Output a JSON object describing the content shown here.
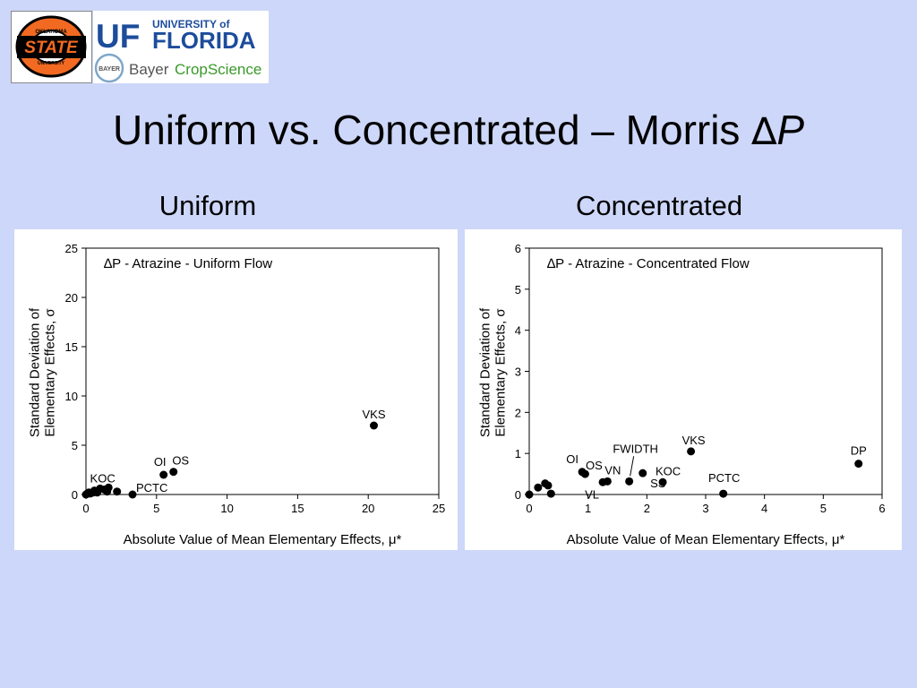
{
  "logos": {
    "osu": {
      "line1": "OKLAHOMA",
      "main": "STATE",
      "line2": "UNIVERSITY"
    },
    "uf": {
      "uf": "UF",
      "university_of": "UNIVERSITY of",
      "florida": "FLORIDA"
    },
    "bayer": {
      "cross": "BAYER",
      "word1": "Bayer",
      "word2": "CropScience"
    }
  },
  "slide": {
    "title_prefix": "Uniform vs. Concentrated – Morris ",
    "title_delta": "∆",
    "title_p": "P",
    "left_heading": "Uniform",
    "right_heading": "Concentrated"
  },
  "colors": {
    "background": "#cdd7f9",
    "marker": "#000000"
  },
  "chart_data": [
    {
      "type": "scatter",
      "title": "∆P - Atrazine - Uniform Flow",
      "xlabel": "Absolute Value of Mean Elementary Effects, μ*",
      "ylabel_line1": "Standard Deviation of",
      "ylabel_line2": "Elementary Effects, σ",
      "xlim": [
        0,
        25
      ],
      "ylim": [
        0,
        25
      ],
      "xticks": [
        0,
        5,
        10,
        15,
        20,
        25
      ],
      "yticks": [
        0,
        5,
        10,
        15,
        20,
        25
      ],
      "grid": false,
      "points": [
        {
          "x": 0.0,
          "y": 0.0,
          "label": ""
        },
        {
          "x": 0.1,
          "y": 0.1,
          "label": ""
        },
        {
          "x": 0.2,
          "y": 0.2,
          "label": ""
        },
        {
          "x": 0.3,
          "y": 0.1,
          "label": ""
        },
        {
          "x": 0.5,
          "y": 0.2,
          "label": ""
        },
        {
          "x": 0.6,
          "y": 0.4,
          "label": ""
        },
        {
          "x": 0.8,
          "y": 0.2,
          "label": ""
        },
        {
          "x": 1.0,
          "y": 0.6,
          "label": ""
        },
        {
          "x": 1.3,
          "y": 0.5,
          "label": ""
        },
        {
          "x": 1.5,
          "y": 0.3,
          "label": "KOC"
        },
        {
          "x": 1.6,
          "y": 0.7,
          "label": ""
        },
        {
          "x": 2.2,
          "y": 0.3,
          "label": ""
        },
        {
          "x": 3.3,
          "y": 0.0,
          "label": "PCTC"
        },
        {
          "x": 5.5,
          "y": 2.0,
          "label": "OI"
        },
        {
          "x": 6.2,
          "y": 2.3,
          "label": "OS"
        },
        {
          "x": 20.4,
          "y": 7.0,
          "label": "VKS"
        }
      ]
    },
    {
      "type": "scatter",
      "title": "∆P - Atrazine - Concentrated Flow",
      "xlabel": "Absolute Value of Mean Elementary Effects, μ*",
      "ylabel_line1": "Standard Deviation of",
      "ylabel_line2": "Elementary Effects, σ",
      "xlim": [
        0,
        6
      ],
      "ylim": [
        0,
        6
      ],
      "xticks": [
        0,
        1,
        2,
        3,
        4,
        5,
        6
      ],
      "yticks": [
        0,
        1,
        2,
        3,
        4,
        5,
        6
      ],
      "grid": false,
      "points": [
        {
          "x": 0.0,
          "y": 0.0,
          "label": ""
        },
        {
          "x": 0.15,
          "y": 0.17,
          "label": ""
        },
        {
          "x": 0.27,
          "y": 0.27,
          "label": ""
        },
        {
          "x": 0.32,
          "y": 0.22,
          "label": ""
        },
        {
          "x": 0.37,
          "y": 0.02,
          "label": ""
        },
        {
          "x": 0.9,
          "y": 0.55,
          "label": "OI"
        },
        {
          "x": 0.95,
          "y": 0.5,
          "label": "OS"
        },
        {
          "x": 1.25,
          "y": 0.3,
          "label": "VL"
        },
        {
          "x": 1.33,
          "y": 0.32,
          "label": "VN"
        },
        {
          "x": 1.7,
          "y": 0.32,
          "label": "FWIDTH"
        },
        {
          "x": 1.93,
          "y": 0.52,
          "label": "SS"
        },
        {
          "x": 2.27,
          "y": 0.3,
          "label": "KOC"
        },
        {
          "x": 2.75,
          "y": 1.05,
          "label": "VKS"
        },
        {
          "x": 3.3,
          "y": 0.02,
          "label": "PCTC"
        },
        {
          "x": 5.6,
          "y": 0.75,
          "label": "DP"
        }
      ]
    }
  ]
}
